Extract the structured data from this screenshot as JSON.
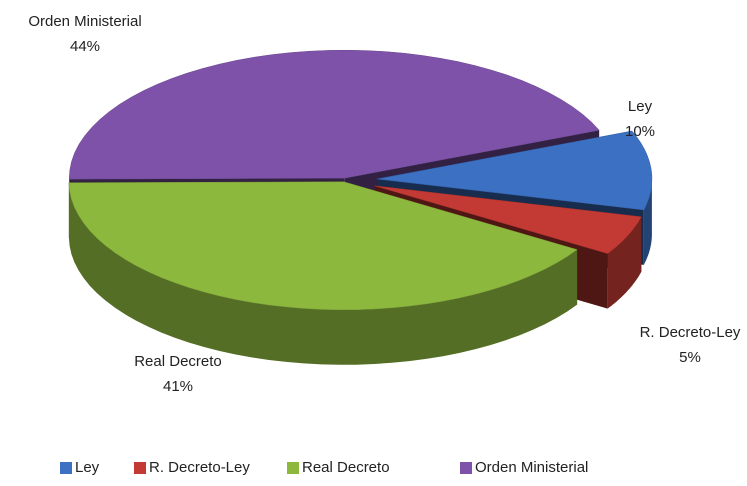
{
  "chart_data": {
    "type": "pie",
    "categories": [
      "Ley",
      "R. Decreto-Ley",
      "Real Decreto",
      "Orden Ministerial"
    ],
    "values": [
      10,
      5,
      41,
      44
    ],
    "value_labels": [
      "10%",
      "5%",
      "41%",
      "44%"
    ],
    "colors": [
      "#3b70c2",
      "#c23a33",
      "#8db83e",
      "#7d52a8"
    ],
    "legend": "bottom",
    "three_d": true
  }
}
